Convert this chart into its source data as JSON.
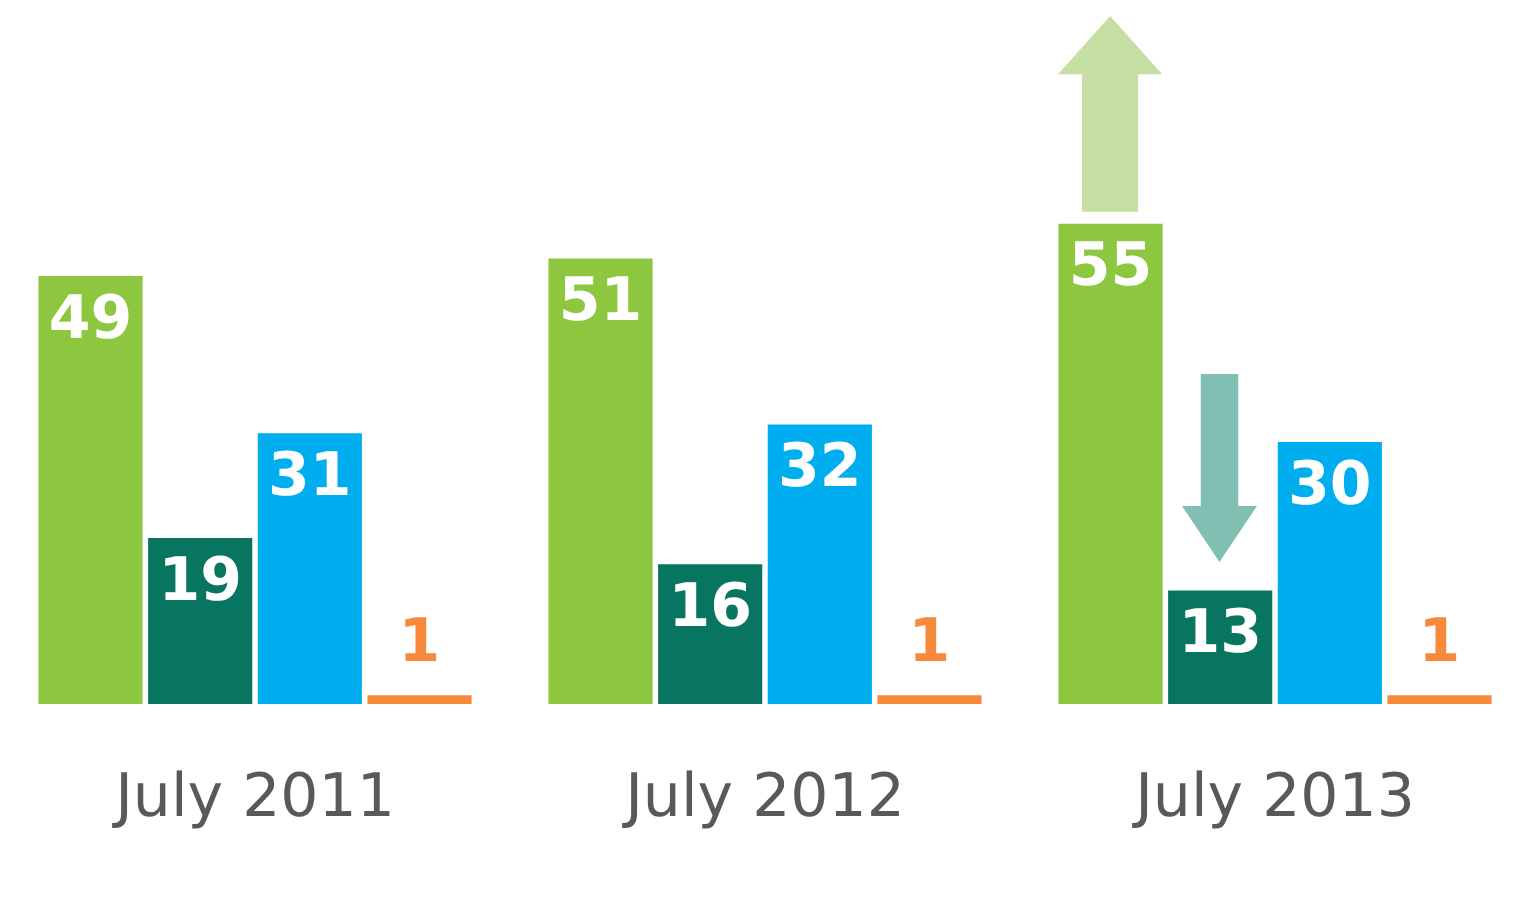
{
  "chart_data": {
    "type": "bar",
    "categories": [
      "July 2011",
      "July 2012",
      "July 2013"
    ],
    "series": [
      {
        "color": "#8dc63f",
        "values": [
          49,
          51,
          55
        ]
      },
      {
        "color": "#077560",
        "values": [
          19,
          16,
          13
        ]
      },
      {
        "color": "#00adef",
        "values": [
          31,
          32,
          30
        ]
      },
      {
        "color": "#f7893b",
        "values": [
          1,
          1,
          1
        ]
      }
    ],
    "data_labels": true,
    "grid": false,
    "legend": false,
    "tick_labels": "x"
  }
}
